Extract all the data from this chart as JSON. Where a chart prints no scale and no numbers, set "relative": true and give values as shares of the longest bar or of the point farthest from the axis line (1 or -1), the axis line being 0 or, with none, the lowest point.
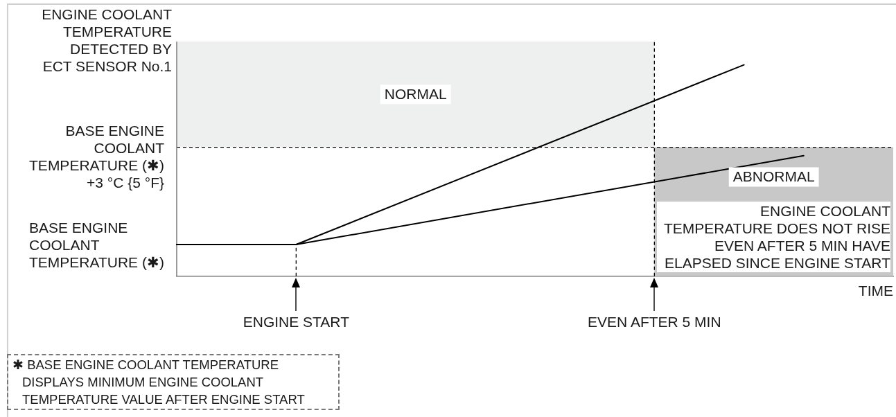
{
  "chart_data": {
    "type": "line",
    "relative": true,
    "ylabel": "ENGINE COOLANT TEMPERATURE DETECTED BY ECT SENSOR No.1",
    "xlabel": "TIME",
    "categories": [
      null,
      null,
      null,
      null,
      "ENGINE START",
      null,
      null,
      null,
      null,
      null,
      null,
      null,
      null,
      null,
      null,
      null,
      "EVEN AFTER 5 MIN",
      null,
      null,
      null,
      null,
      null,
      null,
      null,
      null
    ],
    "series": [
      {
        "color": "#000000",
        "values": [
          0.15,
          null,
          null,
          null,
          0.15,
          null,
          null,
          null,
          null,
          null,
          null,
          null,
          null,
          null,
          null,
          null,
          null,
          null,
          null,
          1,
          null,
          null,
          null,
          null,
          null
        ]
      },
      {
        "color": "#000000",
        "values": [
          0.15,
          null,
          null,
          null,
          0.15,
          null,
          null,
          null,
          null,
          null,
          null,
          null,
          null,
          null,
          null,
          null,
          null,
          null,
          null,
          null,
          null,
          0.57,
          null,
          null,
          null
        ]
      }
    ],
    "bands": [
      {
        "axis": "y",
        "from": 0.61,
        "to": 1.11,
        "label": "NORMAL",
        "color": "#eef0ef"
      },
      {
        "axis": "y",
        "from": 0,
        "to": 0.61,
        "label": "ABNORMAL",
        "color": "#c8c8c8"
      }
    ],
    "ref_lines": [
      {
        "axis": "y",
        "value": 0.61,
        "label": "BASE ENGINE COOLANT TEMPERATURE (✱) +3 °C {5 °F}",
        "line_style": "dashed",
        "color": "#000000"
      },
      {
        "axis": "x",
        "value": "ENGINE START",
        "line_style": "dashed",
        "color": "#000000"
      },
      {
        "axis": "x",
        "value": "EVEN AFTER 5 MIN",
        "line_style": "dashed",
        "color": "#000000"
      }
    ],
    "annotations": [
      "BASE ENGINE COOLANT TEMPERATURE (✱)",
      "ENGINE COOLANT TEMPERATURE DOES NOT RISE EVEN AFTER 5 MIN HAVE ELAPSED SINCE ENGINE START",
      "✱ BASE ENGINE COOLANT TEMPERATURE DISPLAYS MINIMUM ENGINE COOLANT TEMPERATURE VALUE AFTER ENGINE START"
    ],
    "grid": false,
    "legend": false,
    "marker": "none"
  }
}
